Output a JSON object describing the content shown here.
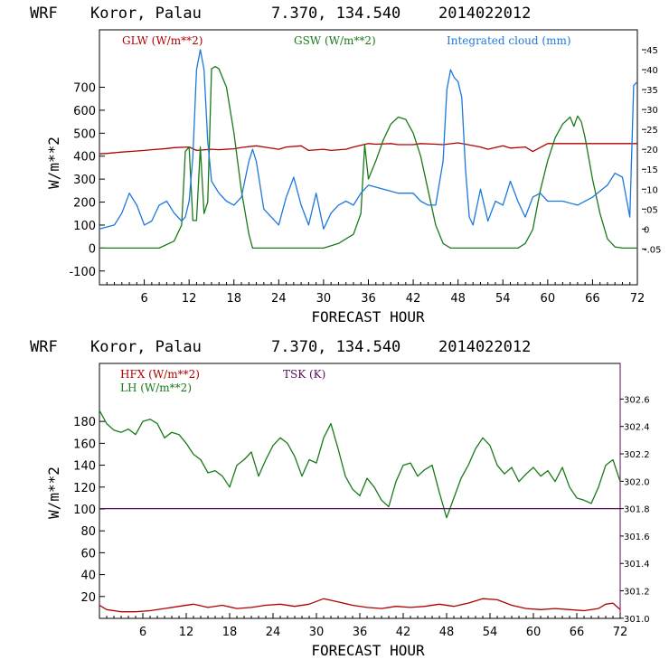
{
  "chart_data": [
    {
      "type": "line",
      "header": {
        "model": "WRF",
        "location": "Koror, Palau",
        "coords": "7.370, 134.540",
        "init": "2014022012"
      },
      "xlabel": "FORECAST HOUR",
      "ylabel": "W/m**2",
      "xlim": [
        0,
        72
      ],
      "xticks": [
        "6",
        "12",
        "18",
        "24",
        "30",
        "36",
        "42",
        "48",
        "54",
        "60",
        "66",
        "72"
      ],
      "ylim": [
        -160,
        950
      ],
      "yticks": [
        "-100",
        "0",
        "100",
        "200",
        "300",
        "400",
        "500",
        "600",
        "700"
      ],
      "ylim_right": [
        -0.14,
        0.5
      ],
      "yticks_right": [
        "-.05",
        "0",
        ".05",
        ".10",
        ".15",
        ".20",
        ".25",
        ".30",
        ".35",
        ".40",
        ".45"
      ],
      "grid": false,
      "legend": [
        {
          "label": "GLW (W/m**2)",
          "color": "#b00000"
        },
        {
          "label": "GSW (W/m**2)",
          "color": "#1a7a1a"
        },
        {
          "label": "Integrated cloud (mm)",
          "color": "#1e78dc"
        }
      ],
      "series": [
        {
          "name": "GLW (W/m**2)",
          "color": "#b00000",
          "axis": "left",
          "x": [
            0,
            1,
            3,
            4,
            6,
            7,
            9,
            10,
            12,
            13,
            15,
            16,
            18,
            19,
            21,
            22,
            24,
            25,
            27,
            28,
            30,
            31,
            33,
            34,
            36,
            37,
            39,
            40,
            42,
            43,
            45,
            46,
            48,
            49,
            51,
            52,
            54,
            55,
            57,
            58,
            60,
            61,
            63,
            64,
            66,
            67,
            69,
            70,
            72
          ],
          "values": [
            410,
            412,
            418,
            420,
            425,
            428,
            433,
            437,
            440,
            425,
            430,
            428,
            432,
            438,
            445,
            440,
            430,
            440,
            445,
            425,
            430,
            425,
            430,
            440,
            455,
            452,
            455,
            450,
            450,
            455,
            452,
            450,
            458,
            452,
            440,
            430,
            445,
            435,
            440,
            420,
            455,
            455,
            455,
            455,
            455,
            455,
            455,
            455,
            455
          ]
        },
        {
          "name": "GSW (W/m**2)",
          "color": "#1a7a1a",
          "axis": "left",
          "x": [
            0,
            8,
            10,
            11,
            11.5,
            12,
            12.5,
            13,
            13.5,
            14,
            14.5,
            15,
            15.5,
            16,
            17,
            18,
            19,
            20,
            20.5,
            24,
            30,
            32,
            34,
            35,
            35.5,
            36,
            37,
            38,
            39,
            40,
            41,
            42,
            43,
            44,
            45,
            46,
            47,
            48,
            56,
            57,
            58,
            59,
            60,
            61,
            62,
            63,
            63.5,
            64,
            64.5,
            65,
            66,
            67,
            68,
            69,
            70,
            72
          ],
          "values": [
            0,
            0,
            30,
            100,
            420,
            440,
            120,
            120,
            440,
            150,
            200,
            780,
            790,
            780,
            700,
            500,
            250,
            60,
            0,
            0,
            0,
            20,
            60,
            150,
            450,
            300,
            380,
            470,
            540,
            570,
            560,
            500,
            400,
            250,
            100,
            20,
            0,
            0,
            0,
            20,
            80,
            250,
            380,
            480,
            540,
            570,
            530,
            575,
            550,
            480,
            300,
            150,
            40,
            5,
            0,
            0
          ]
        },
        {
          "name": "Integrated cloud (mm)",
          "color": "#1e78dc",
          "axis": "right",
          "x": [
            0,
            2,
            3,
            4,
            5,
            6,
            7,
            8,
            9,
            10,
            11,
            11.5,
            12,
            12.5,
            13,
            13.5,
            14,
            14.5,
            15,
            16,
            17,
            18,
            19,
            20,
            20.5,
            21,
            22,
            23,
            24,
            25,
            26,
            27,
            28,
            29,
            30,
            31,
            32,
            33,
            34,
            35,
            36,
            38,
            40,
            42,
            43,
            44,
            45,
            46,
            46.5,
            47,
            47.5,
            48,
            48.5,
            49,
            49.5,
            50,
            51,
            52,
            53,
            54,
            55,
            56,
            57,
            58,
            59,
            60,
            62,
            64,
            66,
            68,
            69,
            70,
            70.5,
            71,
            71.5,
            72
          ],
          "values": [
            0.0,
            0.01,
            0.04,
            0.09,
            0.06,
            0.01,
            0.02,
            0.06,
            0.07,
            0.04,
            0.02,
            0.03,
            0.07,
            0.18,
            0.4,
            0.45,
            0.4,
            0.22,
            0.12,
            0.09,
            0.07,
            0.06,
            0.08,
            0.17,
            0.2,
            0.17,
            0.05,
            0.03,
            0.01,
            0.08,
            0.13,
            0.06,
            0.01,
            0.09,
            0.0,
            0.04,
            0.06,
            0.07,
            0.06,
            0.09,
            0.11,
            0.1,
            0.09,
            0.09,
            0.07,
            0.06,
            0.06,
            0.17,
            0.35,
            0.4,
            0.38,
            0.37,
            0.33,
            0.15,
            0.03,
            0.01,
            0.1,
            0.02,
            0.07,
            0.06,
            0.12,
            0.07,
            0.03,
            0.08,
            0.09,
            0.07,
            0.07,
            0.06,
            0.08,
            0.11,
            0.14,
            0.13,
            0.08,
            0.03,
            0.36,
            0.37
          ]
        }
      ]
    },
    {
      "type": "line",
      "header": {
        "model": "WRF",
        "location": "Koror, Palau",
        "coords": "7.370, 134.540",
        "init": "2014022012"
      },
      "xlabel": "FORECAST HOUR",
      "ylabel": "W/m**2",
      "xlim": [
        0,
        72
      ],
      "xticks": [
        "6",
        "12",
        "18",
        "24",
        "30",
        "36",
        "42",
        "48",
        "54",
        "60",
        "66",
        "72"
      ],
      "ylim": [
        0,
        233
      ],
      "yticks": [
        "20",
        "40",
        "60",
        "80",
        "100",
        "120",
        "140",
        "160",
        "180"
      ],
      "ylim_right": [
        300.999,
        302.86
      ],
      "yticks_right": [
        "301.0",
        "301.2",
        "301.4",
        "301.6",
        "301.8",
        "302.0",
        "302.2",
        "302.4",
        "302.6"
      ],
      "grid": false,
      "legend": [
        {
          "label": "HFX (W/m**2)",
          "color": "#b00000"
        },
        {
          "label": "LH  (W/m**2)",
          "color": "#1a7a1a"
        },
        {
          "label": "TSK (K)",
          "color": "#5a0a5a"
        }
      ],
      "series": [
        {
          "name": "HFX (W/m**2)",
          "color": "#b00000",
          "axis": "left",
          "x": [
            0,
            1,
            3,
            5,
            7,
            9,
            11,
            13,
            15,
            17,
            19,
            21,
            23,
            25,
            27,
            29,
            31,
            33,
            35,
            37,
            39,
            41,
            43,
            45,
            47,
            49,
            51,
            53,
            55,
            57,
            59,
            61,
            63,
            65,
            67,
            69,
            70,
            71,
            72
          ],
          "values": [
            12,
            8,
            6,
            6,
            7,
            9,
            11,
            13,
            10,
            12,
            9,
            10,
            12,
            13,
            11,
            13,
            18,
            15,
            12,
            10,
            9,
            11,
            10,
            11,
            13,
            11,
            14,
            18,
            17,
            12,
            9,
            8,
            9,
            8,
            7,
            9,
            13,
            14,
            8
          ]
        },
        {
          "name": "LH  (W/m**2)",
          "color": "#1a7a1a",
          "axis": "left",
          "x": [
            0,
            1,
            2,
            3,
            4,
            5,
            6,
            7,
            8,
            9,
            10,
            11,
            12,
            13,
            14,
            15,
            16,
            17,
            18,
            19,
            20,
            21,
            22,
            23,
            24,
            25,
            26,
            27,
            28,
            29,
            30,
            31,
            32,
            33,
            34,
            35,
            36,
            37,
            38,
            39,
            40,
            41,
            42,
            43,
            44,
            45,
            46,
            47,
            48,
            49,
            50,
            51,
            52,
            53,
            54,
            55,
            56,
            57,
            58,
            59,
            60,
            61,
            62,
            63,
            64,
            65,
            66,
            67,
            68,
            69,
            70,
            71,
            72
          ],
          "values": [
            190,
            178,
            172,
            170,
            173,
            168,
            180,
            182,
            178,
            165,
            170,
            168,
            160,
            150,
            145,
            133,
            135,
            130,
            120,
            140,
            145,
            152,
            130,
            145,
            158,
            165,
            160,
            148,
            130,
            145,
            142,
            165,
            178,
            155,
            130,
            118,
            112,
            128,
            120,
            108,
            102,
            125,
            140,
            142,
            130,
            136,
            140,
            115,
            92,
            110,
            128,
            140,
            155,
            165,
            158,
            140,
            132,
            138,
            125,
            132,
            138,
            130,
            135,
            125,
            138,
            120,
            110,
            108,
            105,
            120,
            140,
            145,
            125
          ]
        },
        {
          "name": "TSK (K)",
          "color": "#5a0a5a",
          "axis": "right",
          "x": [
            0,
            72
          ],
          "values": [
            301.8,
            301.8
          ]
        }
      ]
    }
  ]
}
